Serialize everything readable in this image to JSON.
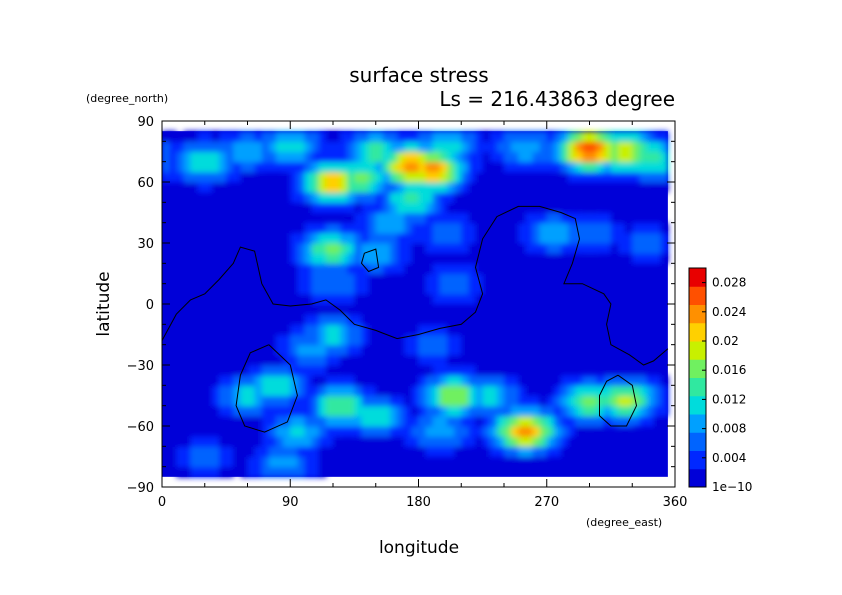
{
  "chart_data": {
    "type": "heatmap",
    "title": "surface stress",
    "subtitle": "Ls = 216.43863 degree",
    "xlabel": "longitude",
    "ylabel": "latitude",
    "x_unit": "(degree_east)",
    "y_unit": "(degree_north)",
    "xlim": [
      0,
      360
    ],
    "ylim": [
      -90,
      90
    ],
    "x_ticks": [
      0,
      90,
      180,
      270,
      360
    ],
    "x_tick_labels": [
      "0",
      "90",
      "180",
      "270",
      "360"
    ],
    "y_ticks": [
      -90,
      -60,
      -30,
      0,
      30,
      60,
      90
    ],
    "y_tick_labels": [
      "−90",
      "−60",
      "−30",
      "0",
      "30",
      "60",
      "90"
    ],
    "data_extent": {
      "lon": [
        0,
        355
      ],
      "lat": [
        -85,
        85
      ]
    },
    "colorbar": {
      "min": 0,
      "max": 0.03,
      "tick_values": [
        0,
        0.004,
        0.008,
        0.012,
        0.016,
        0.02,
        0.024,
        0.028
      ],
      "tick_labels": [
        "1e−10",
        "0.004",
        "0.008",
        "0.012",
        "0.016",
        "0.02",
        "0.024",
        "0.028"
      ],
      "colors": [
        "#0000d8",
        "#0028ff",
        "#0064ff",
        "#00a0ff",
        "#00dcdc",
        "#30e8a0",
        "#70f060",
        "#c8f000",
        "#ffd000",
        "#ff9000",
        "#ff5000",
        "#e80000"
      ]
    },
    "background_value": 0.001,
    "features": [
      {
        "lon": 30,
        "lat": 70,
        "value": 0.013
      },
      {
        "lon": 60,
        "lat": 75,
        "value": 0.009
      },
      {
        "lon": 90,
        "lat": 78,
        "value": 0.012
      },
      {
        "lon": 120,
        "lat": 60,
        "value": 0.022
      },
      {
        "lon": 140,
        "lat": 62,
        "value": 0.016
      },
      {
        "lon": 150,
        "lat": 75,
        "value": 0.014
      },
      {
        "lon": 175,
        "lat": 68,
        "value": 0.025
      },
      {
        "lon": 190,
        "lat": 66,
        "value": 0.024
      },
      {
        "lon": 175,
        "lat": 52,
        "value": 0.014
      },
      {
        "lon": 160,
        "lat": 40,
        "value": 0.009
      },
      {
        "lon": 200,
        "lat": 78,
        "value": 0.012
      },
      {
        "lon": 255,
        "lat": 77,
        "value": 0.01
      },
      {
        "lon": 300,
        "lat": 76,
        "value": 0.028
      },
      {
        "lon": 325,
        "lat": 75,
        "value": 0.02
      },
      {
        "lon": 345,
        "lat": 72,
        "value": 0.014
      },
      {
        "lon": 118,
        "lat": 27,
        "value": 0.016
      },
      {
        "lon": 120,
        "lat": 10,
        "value": 0.008
      },
      {
        "lon": 150,
        "lat": 25,
        "value": 0.009
      },
      {
        "lon": 200,
        "lat": 35,
        "value": 0.007
      },
      {
        "lon": 205,
        "lat": 10,
        "value": 0.007
      },
      {
        "lon": 275,
        "lat": 35,
        "value": 0.009
      },
      {
        "lon": 300,
        "lat": 35,
        "value": 0.008
      },
      {
        "lon": 340,
        "lat": 30,
        "value": 0.006
      },
      {
        "lon": 120,
        "lat": -15,
        "value": 0.011
      },
      {
        "lon": 105,
        "lat": -22,
        "value": 0.009
      },
      {
        "lon": 190,
        "lat": -20,
        "value": 0.006
      },
      {
        "lon": 60,
        "lat": -45,
        "value": 0.011
      },
      {
        "lon": 80,
        "lat": -40,
        "value": 0.012
      },
      {
        "lon": 125,
        "lat": -50,
        "value": 0.015
      },
      {
        "lon": 150,
        "lat": -55,
        "value": 0.012
      },
      {
        "lon": 205,
        "lat": -45,
        "value": 0.018
      },
      {
        "lon": 230,
        "lat": -45,
        "value": 0.011
      },
      {
        "lon": 255,
        "lat": -62,
        "value": 0.024
      },
      {
        "lon": 300,
        "lat": -48,
        "value": 0.016
      },
      {
        "lon": 325,
        "lat": -47,
        "value": 0.018
      },
      {
        "lon": 95,
        "lat": -63,
        "value": 0.011
      },
      {
        "lon": 195,
        "lat": -62,
        "value": 0.01
      },
      {
        "lon": 85,
        "lat": -78,
        "value": 0.009
      },
      {
        "lon": 30,
        "lat": -75,
        "value": 0.006
      }
    ],
    "contours": [
      [
        [
          0,
          -18
        ],
        [
          10,
          -5
        ],
        [
          20,
          2
        ],
        [
          30,
          5
        ],
        [
          40,
          12
        ],
        [
          50,
          20
        ],
        [
          55,
          28
        ],
        [
          65,
          26
        ],
        [
          70,
          10
        ],
        [
          78,
          0
        ],
        [
          90,
          -1
        ],
        [
          105,
          0
        ],
        [
          115,
          2
        ],
        [
          125,
          -3
        ],
        [
          135,
          -10
        ],
        [
          150,
          -13
        ],
        [
          165,
          -17
        ],
        [
          180,
          -15
        ],
        [
          195,
          -12
        ],
        [
          210,
          -10
        ],
        [
          220,
          -4
        ],
        [
          225,
          5
        ],
        [
          220,
          18
        ],
        [
          225,
          32
        ],
        [
          235,
          43
        ],
        [
          250,
          48
        ],
        [
          265,
          48
        ],
        [
          280,
          45
        ],
        [
          290,
          42
        ],
        [
          293,
          32
        ],
        [
          288,
          20
        ],
        [
          282,
          10
        ],
        [
          295,
          10
        ],
        [
          310,
          5
        ],
        [
          315,
          0
        ],
        [
          312,
          -10
        ],
        [
          315,
          -20
        ],
        [
          328,
          -25
        ],
        [
          338,
          -30
        ],
        [
          345,
          -28
        ],
        [
          355,
          -22
        ]
      ],
      [
        [
          75,
          -20
        ],
        [
          90,
          -30
        ],
        [
          95,
          -45
        ],
        [
          88,
          -58
        ],
        [
          72,
          -63
        ],
        [
          58,
          -60
        ],
        [
          52,
          -50
        ],
        [
          55,
          -35
        ],
        [
          62,
          -24
        ],
        [
          75,
          -20
        ]
      ],
      [
        [
          320,
          -35
        ],
        [
          330,
          -40
        ],
        [
          333,
          -50
        ],
        [
          326,
          -60
        ],
        [
          315,
          -60
        ],
        [
          307,
          -55
        ],
        [
          307,
          -45
        ],
        [
          312,
          -38
        ],
        [
          320,
          -35
        ]
      ],
      [
        [
          142,
          25
        ],
        [
          150,
          27
        ],
        [
          152,
          18
        ],
        [
          145,
          16
        ],
        [
          140,
          20
        ],
        [
          142,
          25
        ]
      ]
    ]
  }
}
